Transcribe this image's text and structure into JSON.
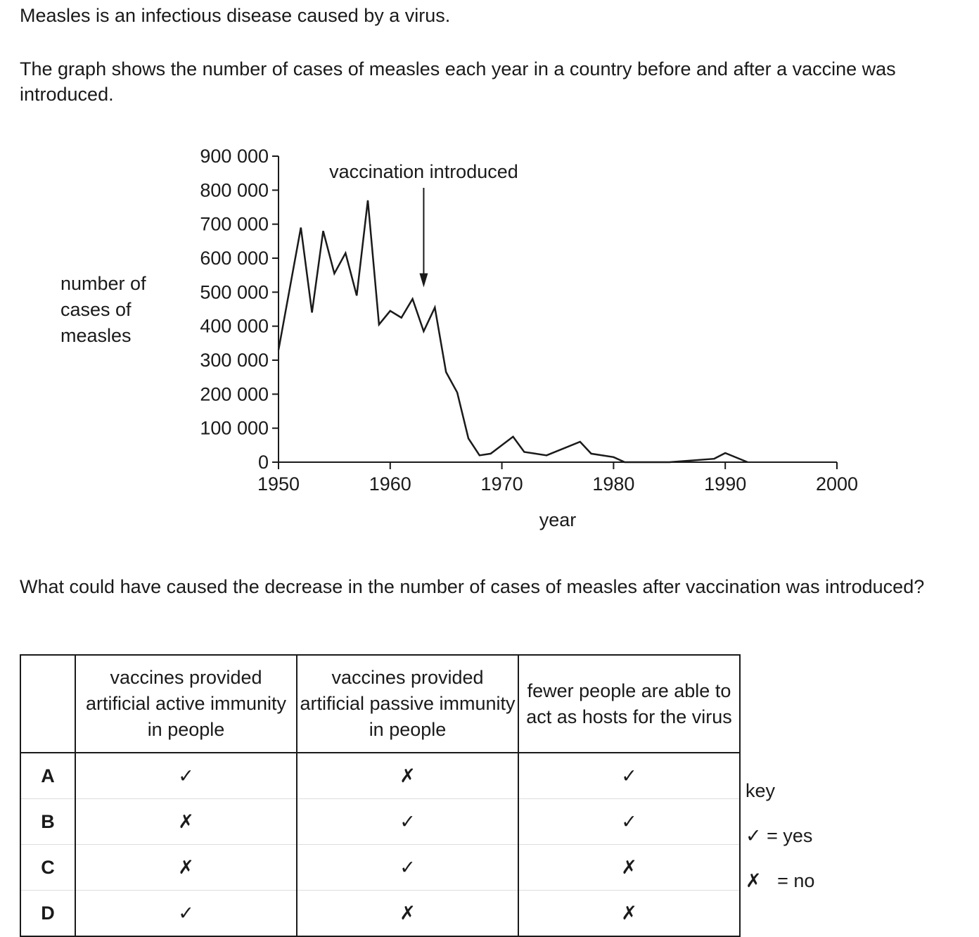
{
  "intro": {
    "line1": "Measles is an infectious disease caused by a virus.",
    "line2": "The graph shows the number of cases of measles each year in a country before and after a vaccine was introduced."
  },
  "chart_data": {
    "type": "line",
    "xlabel": "year",
    "ylabel_lines": [
      "number of",
      "cases of",
      "measles"
    ],
    "xlim": [
      1950,
      2000
    ],
    "ylim": [
      0,
      900000
    ],
    "xticks": [
      1950,
      1960,
      1970,
      1980,
      1990,
      2000
    ],
    "yticks": [
      0,
      100000,
      200000,
      300000,
      400000,
      500000,
      600000,
      700000,
      800000,
      900000
    ],
    "ytick_labels": [
      "0",
      "100 000",
      "200 000",
      "300 000",
      "400 000",
      "500 000",
      "600 000",
      "700 000",
      "800 000",
      "900 000"
    ],
    "xtick_labels": [
      "1950",
      "1960",
      "1970",
      "1980",
      "1990",
      "2000"
    ],
    "grid": false,
    "x": [
      1950,
      1952,
      1953,
      1954,
      1955,
      1956,
      1957,
      1958,
      1959,
      1960,
      1961,
      1962,
      1963,
      1964,
      1965,
      1966,
      1967,
      1968,
      1969,
      1971,
      1972,
      1974,
      1977,
      1978,
      1980,
      1981,
      1985,
      1989,
      1990,
      1992
    ],
    "values": [
      330000,
      690000,
      440000,
      680000,
      555000,
      615000,
      490000,
      770000,
      405000,
      445000,
      425000,
      480000,
      385000,
      455000,
      265000,
      205000,
      70000,
      20000,
      25000,
      75000,
      30000,
      20000,
      60000,
      25000,
      15000,
      0,
      0,
      10000,
      27000,
      0
    ],
    "annotation": {
      "text": "vaccination introduced",
      "x": 1963,
      "arrow_to": 510000
    }
  },
  "question": "What could have caused the decrease in the number of cases of measles after vaccination was introduced?",
  "table": {
    "headers": [
      "",
      "vaccines provided artificial active immunity in people",
      "vaccines provided artificial passive immunity in people",
      "fewer people are able to act as hosts for the virus"
    ],
    "rows": [
      {
        "letter": "A",
        "marks": [
          "✓",
          "✗",
          "✓"
        ]
      },
      {
        "letter": "B",
        "marks": [
          "✗",
          "✓",
          "✓"
        ]
      },
      {
        "letter": "C",
        "marks": [
          "✗",
          "✓",
          "✗"
        ]
      },
      {
        "letter": "D",
        "marks": [
          "✓",
          "✗",
          "✗"
        ]
      }
    ]
  },
  "key": {
    "title": "key",
    "yes": "✓ = yes",
    "no": "✗   = no"
  }
}
